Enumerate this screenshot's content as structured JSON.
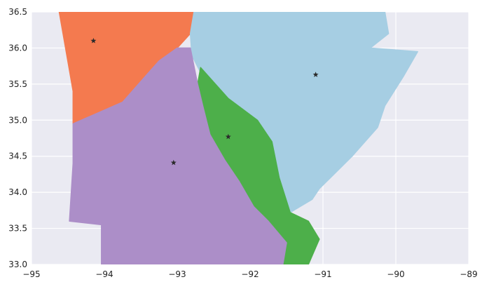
{
  "chart_data": {
    "type": "map",
    "title": "",
    "xlabel": "",
    "ylabel": "",
    "xlim": [
      -95,
      -89
    ],
    "ylim": [
      33.0,
      36.5
    ],
    "grid": true,
    "legend": "none",
    "background_color": "#eaeaf2",
    "x_ticks": [
      {
        "value": -95,
        "label": "−95"
      },
      {
        "value": -94,
        "label": "−94"
      },
      {
        "value": -93,
        "label": "−93"
      },
      {
        "value": -92,
        "label": "−92"
      },
      {
        "value": -91,
        "label": "−91"
      },
      {
        "value": -90,
        "label": "−90"
      },
      {
        "value": -89,
        "label": "−89"
      }
    ],
    "y_ticks": [
      {
        "value": 33.0,
        "label": "33.0"
      },
      {
        "value": 33.5,
        "label": "33.5"
      },
      {
        "value": 34.0,
        "label": "34.0"
      },
      {
        "value": 34.5,
        "label": "34.5"
      },
      {
        "value": 35.0,
        "label": "35.0"
      },
      {
        "value": 35.5,
        "label": "35.5"
      },
      {
        "value": 36.0,
        "label": "36.0"
      },
      {
        "value": 36.5,
        "label": "36.5"
      }
    ],
    "regions": [
      {
        "id": "northwest",
        "color": "#f47a4f",
        "points": [
          [
            -94.62,
            36.5
          ],
          [
            -92.77,
            36.5
          ],
          [
            -92.82,
            36.2
          ],
          [
            -93.0,
            36.0
          ],
          [
            -93.25,
            35.82
          ],
          [
            -93.4,
            35.65
          ],
          [
            -93.75,
            35.25
          ],
          [
            -94.43,
            34.95
          ],
          [
            -94.43,
            35.4
          ]
        ]
      },
      {
        "id": "northeast",
        "color": "#a6cee3",
        "points": [
          [
            -92.77,
            36.5
          ],
          [
            -90.15,
            36.5
          ],
          [
            -90.1,
            36.2
          ],
          [
            -90.35,
            36.0
          ],
          [
            -89.7,
            35.95
          ],
          [
            -89.9,
            35.6
          ],
          [
            -90.15,
            35.2
          ],
          [
            -90.25,
            34.9
          ],
          [
            -90.6,
            34.5
          ],
          [
            -90.9,
            34.2
          ],
          [
            -91.05,
            34.05
          ],
          [
            -91.15,
            33.9
          ],
          [
            -91.45,
            33.72
          ],
          [
            -91.6,
            34.2
          ],
          [
            -91.7,
            34.7
          ],
          [
            -91.9,
            35.0
          ],
          [
            -92.3,
            35.3
          ],
          [
            -92.6,
            35.5
          ],
          [
            -92.8,
            35.9
          ],
          [
            -92.82,
            36.2
          ]
        ]
      },
      {
        "id": "central",
        "color": "#4daf4a",
        "points": [
          [
            -92.68,
            35.73
          ],
          [
            -92.3,
            35.3
          ],
          [
            -91.9,
            35.0
          ],
          [
            -91.7,
            34.7
          ],
          [
            -91.6,
            34.2
          ],
          [
            -91.45,
            33.72
          ],
          [
            -91.2,
            33.6
          ],
          [
            -91.05,
            33.35
          ],
          [
            -91.2,
            33.0
          ],
          [
            -91.55,
            33.0
          ],
          [
            -91.5,
            33.3
          ],
          [
            -91.75,
            33.6
          ],
          [
            -91.95,
            33.8
          ],
          [
            -92.15,
            34.15
          ],
          [
            -92.35,
            34.45
          ],
          [
            -92.55,
            34.8
          ],
          [
            -92.65,
            35.2
          ],
          [
            -92.72,
            35.5
          ]
        ]
      },
      {
        "id": "southwest",
        "color": "#ac8ec8",
        "points": [
          [
            -94.43,
            34.95
          ],
          [
            -93.75,
            35.25
          ],
          [
            -93.4,
            35.65
          ],
          [
            -93.25,
            35.82
          ],
          [
            -93.0,
            36.0
          ],
          [
            -92.82,
            36.0
          ],
          [
            -92.72,
            35.5
          ],
          [
            -92.65,
            35.2
          ],
          [
            -92.55,
            34.8
          ],
          [
            -92.35,
            34.45
          ],
          [
            -92.15,
            34.15
          ],
          [
            -91.95,
            33.8
          ],
          [
            -91.75,
            33.6
          ],
          [
            -91.5,
            33.3
          ],
          [
            -91.55,
            33.0
          ],
          [
            -94.04,
            33.0
          ],
          [
            -94.04,
            33.55
          ],
          [
            -94.48,
            33.6
          ],
          [
            -94.43,
            34.4
          ]
        ]
      }
    ],
    "centroids": [
      {
        "region": "northwest",
        "lon": -94.15,
        "lat": 36.1
      },
      {
        "region": "northeast",
        "lon": -91.1,
        "lat": 35.63
      },
      {
        "region": "central",
        "lon": -92.3,
        "lat": 34.77
      },
      {
        "region": "southwest",
        "lon": -93.05,
        "lat": 34.41
      }
    ]
  }
}
